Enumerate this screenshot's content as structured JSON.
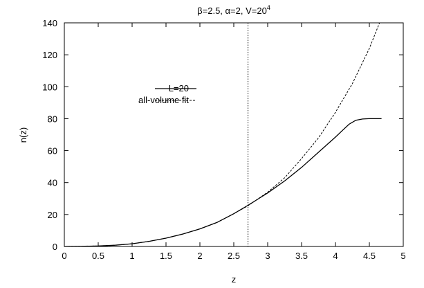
{
  "chart_data": {
    "type": "line",
    "title": "β=2.5, α=2, V=20",
    "title_sup": "4",
    "xlabel": "z",
    "ylabel": "n(z)",
    "xlim": [
      0,
      5
    ],
    "ylim": [
      0,
      140
    ],
    "xticks": [
      0,
      0.5,
      1,
      1.5,
      2,
      2.5,
      3,
      3.5,
      4,
      4.5,
      5
    ],
    "xtick_labels": [
      "0",
      "0.5",
      "1",
      "1.5",
      "2",
      "2.5",
      "3",
      "3.5",
      "4",
      "4.5",
      "5"
    ],
    "yticks": [
      0,
      20,
      40,
      60,
      80,
      100,
      120,
      140
    ],
    "ytick_labels": [
      "0",
      "20",
      "40",
      "60",
      "80",
      "100",
      "120",
      "140"
    ],
    "grid": false,
    "legend_position": "upper-left",
    "vertical_line": {
      "x": 2.71,
      "style": "dotted"
    },
    "series": [
      {
        "name": "L=20",
        "style": "solid",
        "x": [
          0,
          0.25,
          0.5,
          0.75,
          1,
          1.25,
          1.5,
          1.75,
          2,
          2.25,
          2.5,
          2.71,
          3,
          3.25,
          3.5,
          3.75,
          4,
          4.1,
          4.2,
          4.3,
          4.4,
          4.5,
          4.6,
          4.68
        ],
        "y": [
          0,
          0.1,
          0.3,
          0.8,
          1.7,
          3.2,
          5.2,
          7.8,
          11,
          15,
          20.5,
          25.8,
          33.5,
          41,
          49.5,
          59,
          68.5,
          72.5,
          76.5,
          79,
          79.8,
          80,
          80,
          80
        ]
      },
      {
        "name": "all-volume fit",
        "style": "dashed",
        "x": [
          0,
          0.25,
          0.5,
          0.75,
          1,
          1.25,
          1.5,
          1.75,
          2,
          2.25,
          2.5,
          2.71,
          3,
          3.25,
          3.5,
          3.75,
          4,
          4.25,
          4.5,
          4.65
        ],
        "y": [
          0,
          0.1,
          0.3,
          0.8,
          1.7,
          3.2,
          5.2,
          7.8,
          11,
          15,
          20.5,
          25.5,
          34,
          43,
          55,
          68,
          84,
          102,
          124,
          140
        ]
      }
    ]
  }
}
